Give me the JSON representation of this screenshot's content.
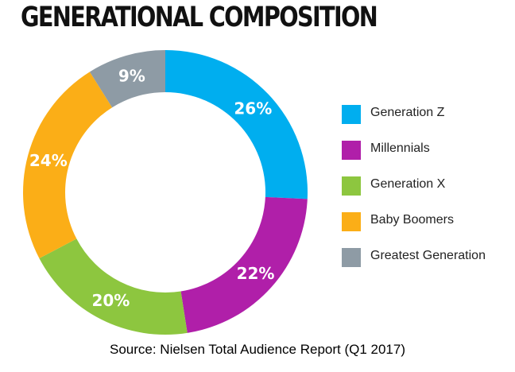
{
  "chart_data": {
    "type": "pie",
    "title": "GENERATIONAL COMPOSITION",
    "categories": [
      "Generation Z",
      "Millennials",
      "Generation X",
      "Baby Boomers",
      "Greatest Generation"
    ],
    "values": [
      26,
      22,
      20,
      24,
      9
    ],
    "value_labels": [
      "26%",
      "22%",
      "20%",
      "24%",
      "9%"
    ],
    "colors": [
      "#00aeef",
      "#b01fa9",
      "#8dc63f",
      "#fbae17",
      "#8e9ba5"
    ],
    "donut": true,
    "legend_position": "right"
  },
  "source": "Source: Nielsen Total Audience Report (Q1 2017)"
}
